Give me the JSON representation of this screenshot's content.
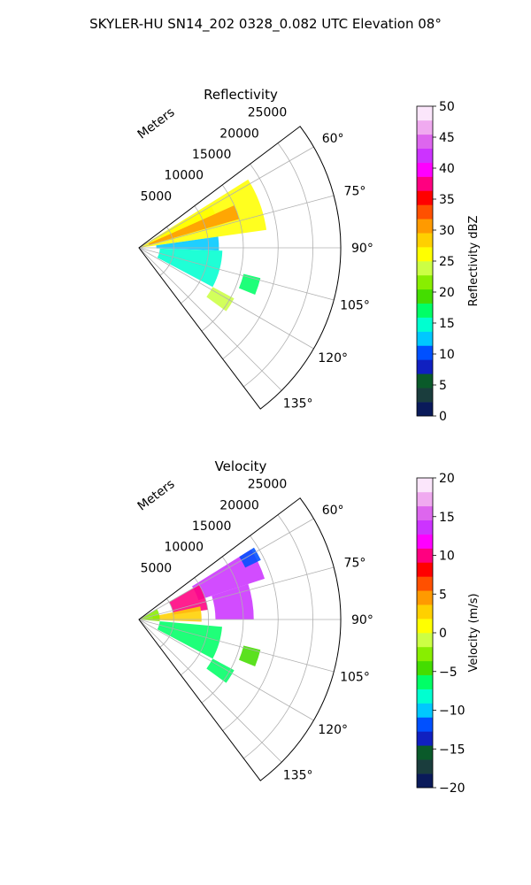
{
  "suptitle": "SKYLER-HU  SN14_202  0328_0.082 UTC Elevation 08°",
  "chart_data": [
    {
      "type": "heatmap",
      "subtype": "polar-sector-ppi",
      "title": "Reflectivity",
      "radial_label": "Meters",
      "radial_ticks": [
        "5000",
        "10000",
        "15000",
        "20000",
        "25000"
      ],
      "radial_tick_values": [
        5000,
        10000,
        15000,
        20000,
        25000
      ],
      "radial_max": 29000,
      "angle_ticks": [
        "60°",
        "75°",
        "90°",
        "105°",
        "120°",
        "135°"
      ],
      "angle_tick_values": [
        60,
        75,
        90,
        105,
        120,
        135
      ],
      "angle_range": [
        53,
        143
      ],
      "grid": true,
      "colorbar": {
        "label": "Reflectivity dBZ",
        "range": [
          0,
          50
        ],
        "tick_values": [
          0,
          5,
          10,
          15,
          20,
          25,
          30,
          35,
          40,
          45,
          50
        ],
        "tick_labels": [
          "0",
          "5",
          "10",
          "15",
          "20",
          "25",
          "30",
          "35",
          "40",
          "45",
          "50"
        ],
        "stops": [
          "#0a1a5a",
          "#1a3d3d",
          "#0a5a2a",
          "#1020c0",
          "#0050ff",
          "#00c8ff",
          "#00ffd0",
          "#00ff66",
          "#44dd00",
          "#88ee00",
          "#ccff44",
          "#ffff00",
          "#ffd000",
          "#ff9a00",
          "#ff5000",
          "#ff0000",
          "#ff0080",
          "#ff00ff",
          "#cc33ff",
          "#dd66ee",
          "#f0aaf0",
          "#fbe6fb"
        ]
      },
      "echo_regions": [
        {
          "az": [
            58,
            82
          ],
          "range": [
            0,
            18500
          ],
          "value": 25
        },
        {
          "az": [
            66,
            74
          ],
          "range": [
            1500,
            15000
          ],
          "value": 30
        },
        {
          "az": [
            60,
            66
          ],
          "range": [
            3500,
            12000
          ],
          "value": 27
        },
        {
          "az": [
            82,
            92
          ],
          "range": [
            2500,
            11500
          ],
          "value": 13
        },
        {
          "az": [
            92,
            118
          ],
          "range": [
            3000,
            12000
          ],
          "value": 14
        },
        {
          "az": [
            118,
            126
          ],
          "range": [
            12000,
            15500
          ],
          "value": 24
        },
        {
          "az": [
            104,
            112
          ],
          "range": [
            15500,
            18000
          ],
          "value": 16
        }
      ]
    },
    {
      "type": "heatmap",
      "subtype": "polar-sector-ppi",
      "title": "Velocity",
      "radial_label": "Meters",
      "radial_ticks": [
        "5000",
        "10000",
        "15000",
        "20000",
        "25000"
      ],
      "radial_tick_values": [
        5000,
        10000,
        15000,
        20000,
        25000
      ],
      "radial_max": 29000,
      "angle_ticks": [
        "60°",
        "75°",
        "90°",
        "105°",
        "120°",
        "135°"
      ],
      "angle_tick_values": [
        60,
        75,
        90,
        105,
        120,
        135
      ],
      "angle_range": [
        53,
        143
      ],
      "grid": true,
      "colorbar": {
        "label": "Velocity (m/s)",
        "range": [
          -20,
          20
        ],
        "tick_values": [
          -20,
          -15,
          -10,
          -5,
          0,
          5,
          10,
          15,
          20
        ],
        "tick_labels": [
          "−20",
          "−15",
          "−10",
          "−5",
          "0",
          "5",
          "10",
          "15",
          "20"
        ],
        "stops": [
          "#0a1a5a",
          "#1a3d3d",
          "#0a5a2a",
          "#1020c0",
          "#0050ff",
          "#00c8ff",
          "#00ffd0",
          "#00ff66",
          "#44dd00",
          "#88ee00",
          "#ccff44",
          "#ffff00",
          "#ffd000",
          "#ff9a00",
          "#ff5000",
          "#ff0000",
          "#ff0080",
          "#ff00ff",
          "#cc33ff",
          "#dd66ee",
          "#f0aaf0",
          "#fbe6fb"
        ]
      },
      "echo_regions": [
        {
          "az": [
            58,
            72
          ],
          "range": [
            9000,
            19000
          ],
          "value": 14
        },
        {
          "az": [
            60,
            82
          ],
          "range": [
            5000,
            10000
          ],
          "value": 10
        },
        {
          "az": [
            72,
            90
          ],
          "range": [
            11000,
            16500
          ],
          "value": 13
        },
        {
          "az": [
            58,
            64
          ],
          "range": [
            17000,
            19500
          ],
          "value": -12
        },
        {
          "az": [
            78,
            92
          ],
          "range": [
            2000,
            9000
          ],
          "value": 3
        },
        {
          "az": [
            60,
            95
          ],
          "range": [
            0,
            3000
          ],
          "value": -3
        },
        {
          "az": [
            95,
            118
          ],
          "range": [
            3000,
            12000
          ],
          "value": -6
        },
        {
          "az": [
            118,
            126
          ],
          "range": [
            12000,
            15500
          ],
          "value": -7
        },
        {
          "az": [
            104,
            112
          ],
          "range": [
            15500,
            18000
          ],
          "value": -4
        }
      ]
    }
  ]
}
